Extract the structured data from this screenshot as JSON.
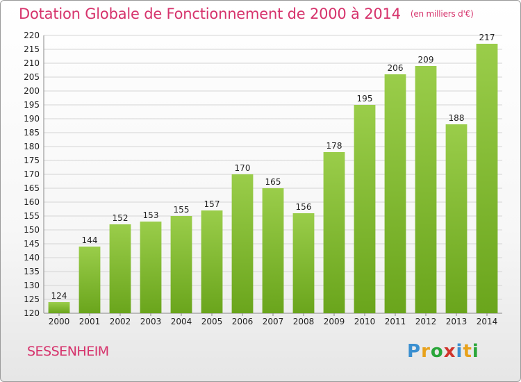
{
  "chart_data": {
    "type": "bar",
    "title": "Dotation Globale de Fonctionnement de 2000 à 2014",
    "subtitle": "(en milliers d'€)",
    "categories": [
      "2000",
      "2001",
      "2002",
      "2003",
      "2004",
      "2005",
      "2006",
      "2007",
      "2008",
      "2009",
      "2010",
      "2011",
      "2012",
      "2013",
      "2014"
    ],
    "values": [
      124,
      144,
      152,
      153,
      155,
      157,
      170,
      165,
      156,
      178,
      195,
      206,
      209,
      188,
      217
    ],
    "ylim": [
      120,
      220
    ],
    "ytick_step": 5,
    "grid": true,
    "bar_color_light": "#9acd4a",
    "bar_color_dark": "#6aa51c"
  },
  "footer": {
    "commune": "SESSENHEIM",
    "logo_letters": [
      "P",
      "r",
      "o",
      "x",
      "i",
      "t",
      "i"
    ],
    "logo_colors": [
      "#3a8fd0",
      "#e8a21c",
      "#2aa63a",
      "#d0342c",
      "#3a8fd0",
      "#e8a21c",
      "#2aa63a"
    ]
  }
}
